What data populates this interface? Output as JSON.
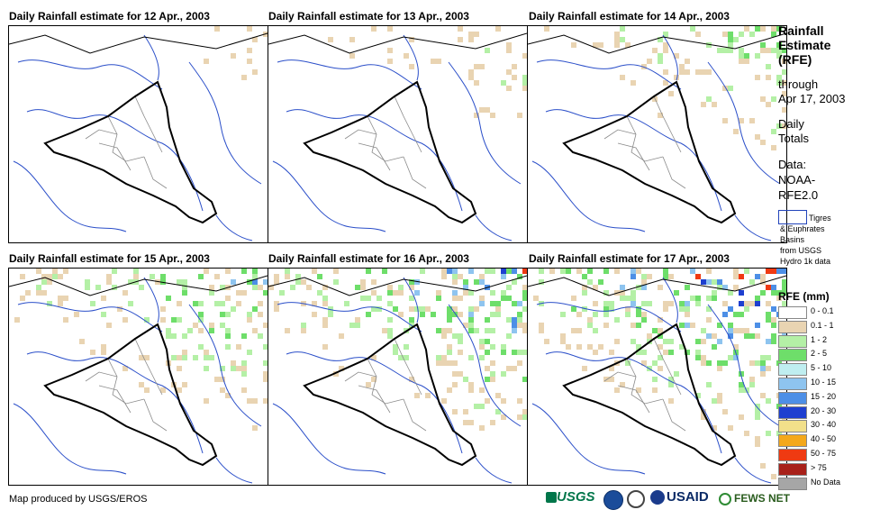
{
  "panels": [
    {
      "title": "Daily Rainfall estimate for 12 Apr., 2003",
      "intensity": 1
    },
    {
      "title": "Daily Rainfall estimate for 13 Apr., 2003",
      "intensity": 2
    },
    {
      "title": "Daily Rainfall estimate for 14 Apr., 2003",
      "intensity": 3
    },
    {
      "title": "Daily Rainfall estimate for 15 Apr., 2003",
      "intensity": 4
    },
    {
      "title": "Daily Rainfall estimate for 16 Apr., 2003",
      "intensity": 5
    },
    {
      "title": "Daily Rainfall estimate for 17 Apr., 2003",
      "intensity": 6
    }
  ],
  "sidebar": {
    "title_lines": [
      "Rainfall",
      "Estimate",
      "(RFE)"
    ],
    "sub_lines": [
      "through",
      "Apr 17, 2003"
    ],
    "daily_lines": [
      "Daily",
      "Totals"
    ],
    "data_lines": [
      "Data:",
      "NOAA-",
      "RFE2.0"
    ],
    "basin_lines": [
      "Tigres",
      "& Euphrates",
      "Basins",
      "from USGS",
      "Hydro 1k data"
    ]
  },
  "legend": {
    "title": "RFE (mm)",
    "items": [
      {
        "label": "0 - 0.1",
        "color": "#ffffff"
      },
      {
        "label": "0.1 - 1",
        "color": "#e9d4b2"
      },
      {
        "label": "1 - 2",
        "color": "#b4f0a6"
      },
      {
        "label": "2 - 5",
        "color": "#6ede6a"
      },
      {
        "label": "5 - 10",
        "color": "#bfeef0"
      },
      {
        "label": "10 - 15",
        "color": "#8ec4ef"
      },
      {
        "label": "15 - 20",
        "color": "#4d8fe6"
      },
      {
        "label": "20 - 30",
        "color": "#1e3fd0"
      },
      {
        "label": "30 - 40",
        "color": "#f2e08a"
      },
      {
        "label": "40 - 50",
        "color": "#f4a81b"
      },
      {
        "label": "50 - 75",
        "color": "#ef3a12"
      },
      {
        "label": "> 75",
        "color": "#a8211a"
      },
      {
        "label": "No Data",
        "color": "#a6a6a6"
      }
    ]
  },
  "footer": {
    "credit": "Map produced by USGS/EROS"
  },
  "logos": {
    "usgs": "USGS",
    "usaid": "USAID",
    "fews": "FEWS NET"
  }
}
